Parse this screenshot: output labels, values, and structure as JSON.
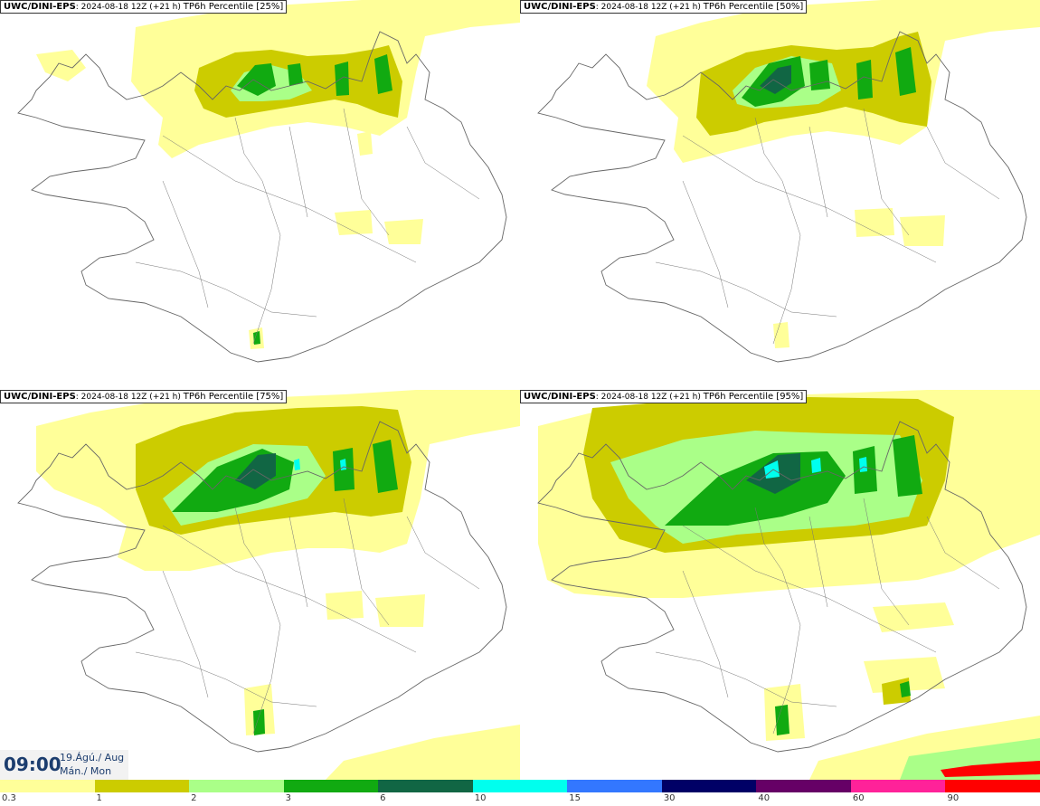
{
  "panels": [
    {
      "model": "UWC/DINI-EPS",
      "run": ": 2024-08-18 12Z (+21 h)",
      "label": "TP6h Percentile [25%]"
    },
    {
      "model": "UWC/DINI-EPS",
      "run": ": 2024-08-18 12Z (+21 h)",
      "label": "TP6h Percentile [50%]"
    },
    {
      "model": "UWC/DINI-EPS",
      "run": ": 2024-08-18 12Z (+21 h)",
      "label": "TP6h Percentile [75%]"
    },
    {
      "model": "UWC/DINI-EPS",
      "run": ": 2024-08-18 12Z (+21 h)",
      "label": "TP6h Percentile [95%]"
    }
  ],
  "time": {
    "clock": "09:00",
    "date": "19.Ágú./ Aug",
    "weekday": "Mán./ Mon"
  },
  "legend": {
    "labels": [
      "0.3",
      "1",
      "2",
      "3",
      "6",
      "10",
      "15",
      "30",
      "40",
      "60",
      "90"
    ],
    "colors": [
      "#ffff99",
      "#cccc00",
      "#aaff88",
      "#11aa11",
      "#116644",
      "#00ffee",
      "#3377ff",
      "#000066",
      "#660066",
      "#ff2299",
      "#ff0000"
    ]
  },
  "palette": {
    "pale": "#ffff99",
    "olive": "#cccc00",
    "light_green": "#aaff88",
    "green": "#11aa11",
    "dark_green": "#116644",
    "cyan": "#00ffee"
  }
}
